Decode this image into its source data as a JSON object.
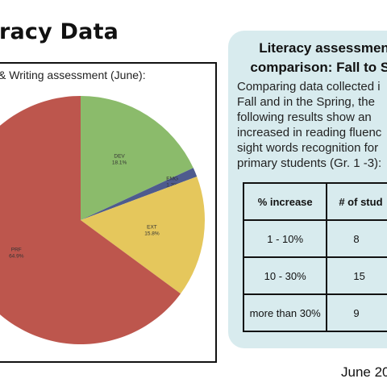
{
  "page": {
    "title": "racy Data",
    "date": "June 20"
  },
  "chart": {
    "heading": "& Writing assessment (June):"
  },
  "chart_data": {
    "type": "pie",
    "title": "",
    "slices": [
      {
        "label": "DEV",
        "value": 18.1,
        "pct_label": "18.1%",
        "color": "#8bbb6b"
      },
      {
        "label": "EMG",
        "value": 1.2,
        "pct_label": "1.2%",
        "color": "#4e5b8e"
      },
      {
        "label": "EXT",
        "value": 15.8,
        "pct_label": "15.8%",
        "color": "#e5c75c"
      },
      {
        "label": "PRF",
        "value": 64.9,
        "pct_label": "64.9%",
        "color": "#bd564d"
      }
    ]
  },
  "card": {
    "heading_line1": "Literacy assessmen",
    "heading_line2": "comparison: Fall to Sp",
    "body_lines": [
      "Comparing data collected i",
      "Fall and in the Spring, the",
      "following results show an",
      "increased in reading fluenc",
      "sight words recognition for",
      "primary students (Gr. 1 -3):"
    ],
    "table": {
      "headers": [
        "% increase",
        "# of stud"
      ],
      "rows": [
        [
          "1 - 10%",
          "8"
        ],
        [
          "10 - 30%",
          "15"
        ],
        [
          "more than 30%",
          "9"
        ]
      ]
    }
  }
}
